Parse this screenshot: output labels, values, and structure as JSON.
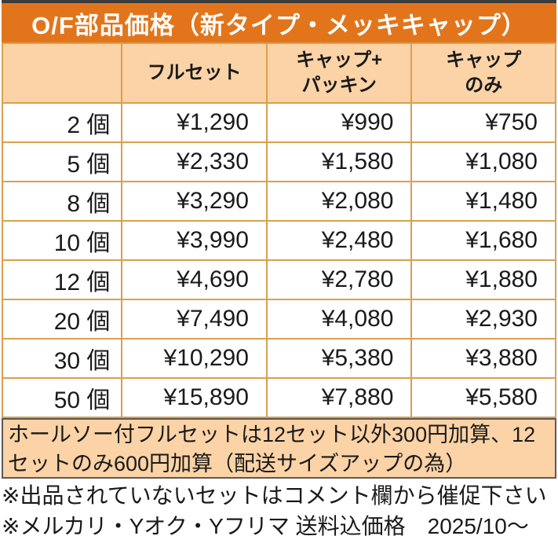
{
  "title": "O/F部品価格（新タイプ・メッキキャップ）",
  "colors": {
    "accent_orange": "#e2751c",
    "header_peach": "#fbd3a6",
    "grid_border_tan": "#d9a050",
    "note_border_gray": "#595959"
  },
  "table": {
    "col_headers": {
      "qty": "",
      "full_set": "フルセット",
      "cap_packing_line1": "キャップ+",
      "cap_packing_line2": "パッキン",
      "cap_only_line1": "キャップ",
      "cap_only_line2": "のみ"
    },
    "rows": [
      {
        "qty": "2 個",
        "full_set": "¥1,290",
        "cap_packing": "¥990",
        "cap_only": "¥750"
      },
      {
        "qty": "5 個",
        "full_set": "¥2,330",
        "cap_packing": "¥1,580",
        "cap_only": "¥1,080"
      },
      {
        "qty": "8 個",
        "full_set": "¥3,290",
        "cap_packing": "¥2,080",
        "cap_only": "¥1,480"
      },
      {
        "qty": "10 個",
        "full_set": "¥3,990",
        "cap_packing": "¥2,480",
        "cap_only": "¥1,680"
      },
      {
        "qty": "12 個",
        "full_set": "¥4,690",
        "cap_packing": "¥2,780",
        "cap_only": "¥1,880"
      },
      {
        "qty": "20 個",
        "full_set": "¥7,490",
        "cap_packing": "¥4,080",
        "cap_only": "¥2,930"
      },
      {
        "qty": "30 個",
        "full_set": "¥10,290",
        "cap_packing": "¥5,380",
        "cap_only": "¥3,880"
      },
      {
        "qty": "50 個",
        "full_set": "¥15,890",
        "cap_packing": "¥7,880",
        "cap_only": "¥5,580"
      }
    ]
  },
  "note": "ホールソー付フルセットは12セット以外300円加算、12セットのみ600円加算（配送サイズアップの為）",
  "footnotes": [
    "※出品されていないセットはコメント欄から催促下さい",
    "※メルカリ・Yオク・Yフリマ 送料込価格　2025/10～"
  ]
}
